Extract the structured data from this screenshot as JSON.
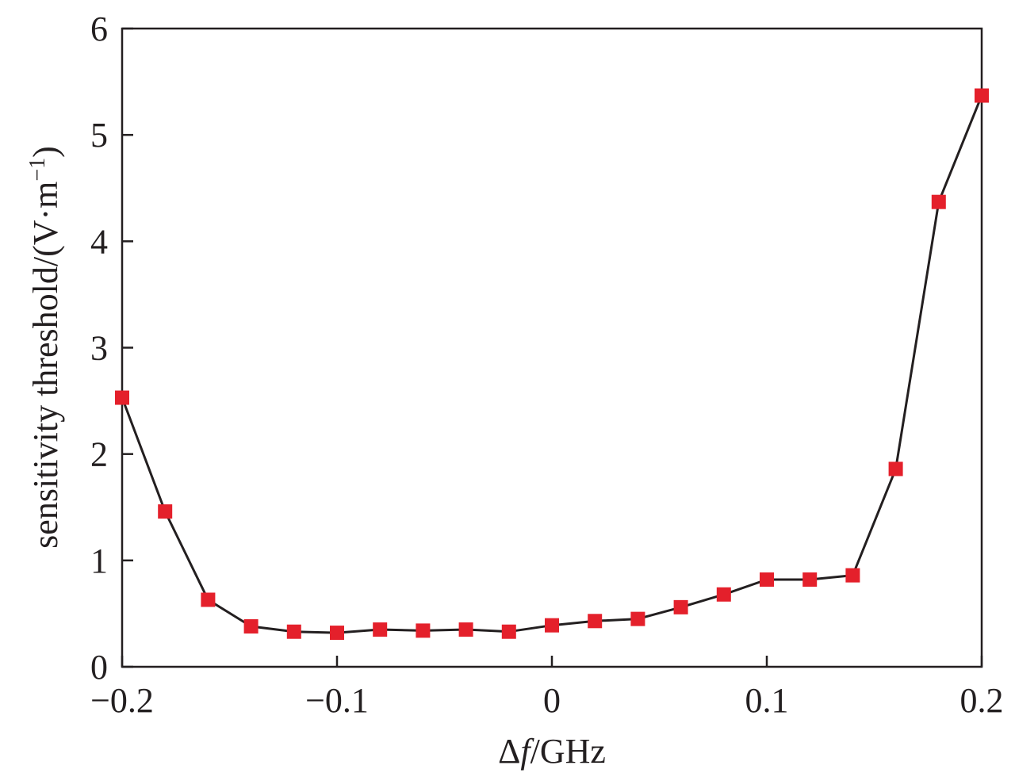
{
  "chart_data": {
    "type": "line",
    "xlabel_parts": [
      "Δ",
      "f",
      "/GHz"
    ],
    "ylabel_parts": [
      "sensitivity threshold/(V·m",
      "−1",
      ")"
    ],
    "xlim": [
      -0.2,
      0.2
    ],
    "ylim": [
      0,
      6
    ],
    "x_ticks": [
      -0.2,
      -0.1,
      0,
      0.1,
      0.2
    ],
    "x_tick_labels": [
      "−0.2",
      "−0.1",
      "0",
      "0.1",
      "0.2"
    ],
    "y_ticks": [
      0,
      1,
      2,
      3,
      4,
      5,
      6
    ],
    "y_tick_labels": [
      "0",
      "1",
      "2",
      "3",
      "4",
      "5",
      "6"
    ],
    "grid": false,
    "legend": "none",
    "line_color": "#231f20",
    "marker_color": "#e4202b",
    "marker": "square",
    "series": [
      {
        "x": [
          -0.2,
          -0.18,
          -0.16,
          -0.14,
          -0.12,
          -0.1,
          -0.08,
          -0.06,
          -0.04,
          -0.02,
          0,
          0.02,
          0.04,
          0.06,
          0.08,
          0.1,
          0.12,
          0.14,
          0.16,
          0.18,
          0.2
        ],
        "values": [
          2.53,
          1.46,
          0.63,
          0.38,
          0.33,
          0.32,
          0.35,
          0.34,
          0.35,
          0.33,
          0.39,
          0.43,
          0.45,
          0.56,
          0.68,
          0.82,
          0.82,
          0.86,
          1.86,
          4.37,
          5.37
        ]
      }
    ]
  }
}
